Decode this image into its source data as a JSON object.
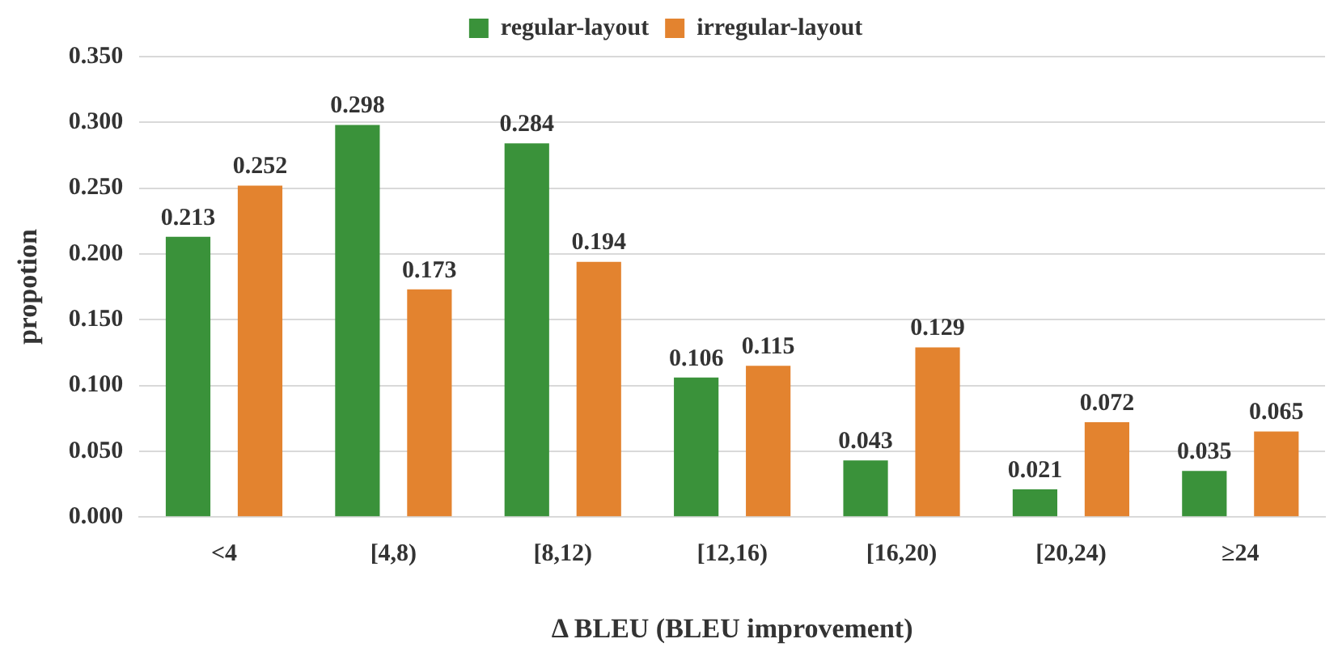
{
  "chart_data": {
    "type": "bar",
    "xlabel": "Δ BLEU (BLEU improvement)",
    "ylabel": "propotion",
    "categories": [
      "<4",
      "[4,8)",
      "[8,12)",
      "[12,16)",
      "[16,20)",
      "[20,24)",
      "≥24"
    ],
    "series": [
      {
        "name": "regular-layout",
        "color": "#3a923a",
        "values": [
          0.213,
          0.298,
          0.284,
          0.106,
          0.043,
          0.021,
          0.035
        ]
      },
      {
        "name": "irregular-layout",
        "color": "#e3832f",
        "values": [
          0.252,
          0.173,
          0.194,
          0.115,
          0.129,
          0.072,
          0.065
        ]
      }
    ],
    "ylim": [
      0,
      0.35
    ],
    "yticks": [
      {
        "value": 0,
        "label": "0.000"
      },
      {
        "value": 0.05,
        "label": "0.050"
      },
      {
        "value": 0.1,
        "label": "0.100"
      },
      {
        "value": 0.15,
        "label": "0.150"
      },
      {
        "value": 0.2,
        "label": "0.200"
      },
      {
        "value": 0.25,
        "label": "0.250"
      },
      {
        "value": 0.3,
        "label": "0.300"
      },
      {
        "value": 0.35,
        "label": "0.350"
      }
    ],
    "grid": "y",
    "legend": "top",
    "data_labels": true
  }
}
